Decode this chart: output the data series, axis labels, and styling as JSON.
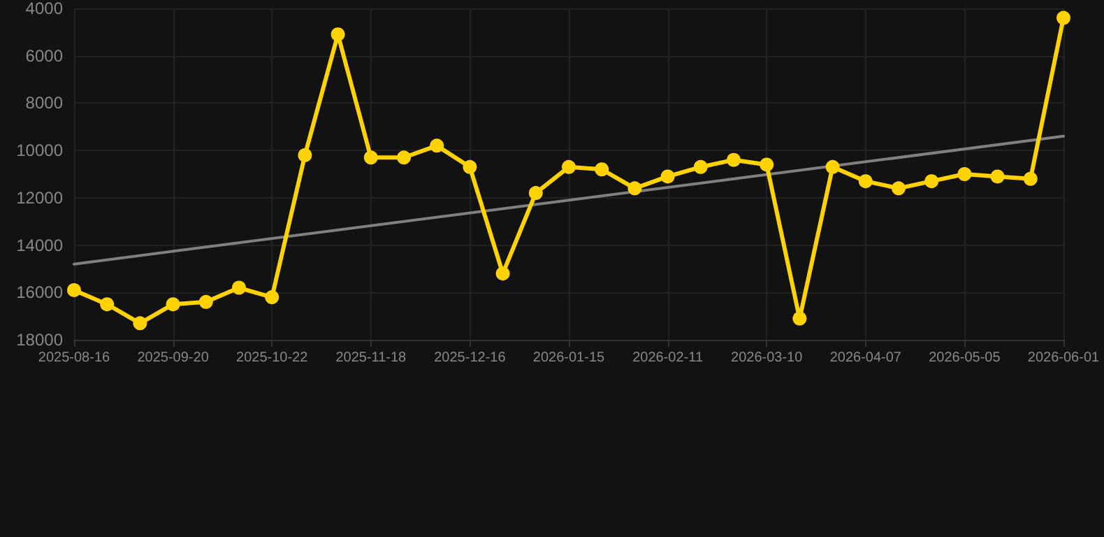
{
  "chart_data": {
    "type": "line",
    "categories": [
      "2025-08-16",
      null,
      null,
      "2025-09-20",
      null,
      null,
      "2025-10-22",
      null,
      null,
      "2025-11-18",
      null,
      null,
      "2025-12-16",
      null,
      null,
      "2026-01-15",
      null,
      null,
      "2026-02-11",
      null,
      null,
      "2026-03-10",
      null,
      null,
      "2026-04-07",
      null,
      null,
      "2026-05-05",
      null,
      null,
      "2026-06-01"
    ],
    "series": [
      {
        "color": "#ffd200",
        "marker": "circle",
        "values": [
          15900,
          16500,
          17300,
          16500,
          16400,
          15800,
          16200,
          10200,
          5100,
          10300,
          10300,
          9800,
          10700,
          15200,
          11800,
          10700,
          10800,
          11600,
          11100,
          10700,
          10400,
          10600,
          17100,
          10700,
          11300,
          11600,
          11300,
          11000,
          11100,
          11200,
          4400
        ]
      },
      {
        "color": "#808080",
        "marker": "none",
        "values": [
          14800,
          null,
          null,
          null,
          null,
          null,
          null,
          null,
          null,
          null,
          null,
          null,
          null,
          null,
          null,
          null,
          null,
          null,
          null,
          null,
          null,
          null,
          null,
          null,
          null,
          null,
          null,
          null,
          null,
          null,
          9400
        ]
      }
    ],
    "ylim": [
      18000,
      4000
    ],
    "yticks": [
      4000,
      6000,
      8000,
      10000,
      12000,
      14000,
      16000,
      18000
    ],
    "grid": true,
    "line_style": "solid"
  }
}
